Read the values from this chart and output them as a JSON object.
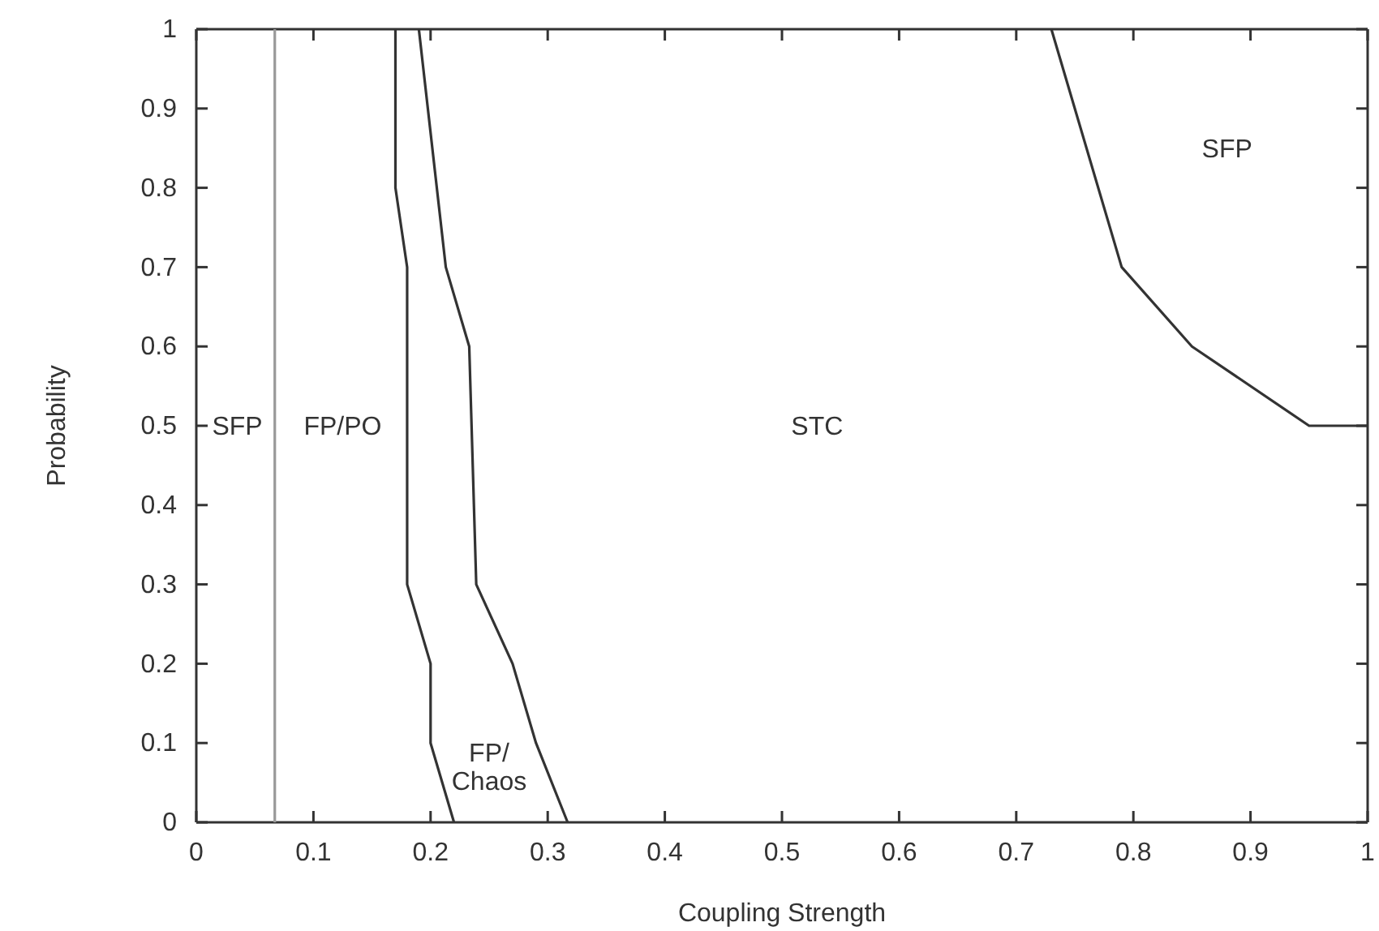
{
  "chart_data": {
    "type": "line",
    "xlabel": "Coupling Strength",
    "ylabel": "Probability",
    "xlim": [
      0,
      1
    ],
    "ylim": [
      0,
      1
    ],
    "xticks": [
      0,
      0.1,
      0.2,
      0.3,
      0.4,
      0.5,
      0.6,
      0.7,
      0.8,
      0.9,
      1
    ],
    "yticks": [
      0,
      0.1,
      0.2,
      0.3,
      0.4,
      0.5,
      0.6,
      0.7,
      0.8,
      0.9,
      1
    ],
    "grid": false,
    "marker": "none",
    "line_style": "solid",
    "series": [
      {
        "color": "#999999",
        "x": [
          0.067,
          0.067
        ],
        "values": [
          0,
          1
        ]
      },
      {
        "color": "#333333",
        "x": [
          0.17,
          0.17,
          0.18,
          0.18,
          0.2,
          0.2,
          0.22
        ],
        "values": [
          1,
          0.8,
          0.7,
          0.3,
          0.2,
          0.1,
          0
        ]
      },
      {
        "color": "#333333",
        "x": [
          0.19,
          0.213,
          0.233,
          0.239,
          0.27,
          0.29,
          0.317
        ],
        "values": [
          1,
          0.7,
          0.6,
          0.3,
          0.2,
          0.1,
          0
        ]
      },
      {
        "color": "#333333",
        "x": [
          0.73,
          0.79,
          0.85,
          0.95,
          1
        ],
        "values": [
          1,
          0.7,
          0.6,
          0.5,
          0.5
        ]
      }
    ],
    "annotations": [
      "SFP",
      "FP/PO",
      "STC",
      "SFP",
      "FP/\nChaos"
    ]
  }
}
